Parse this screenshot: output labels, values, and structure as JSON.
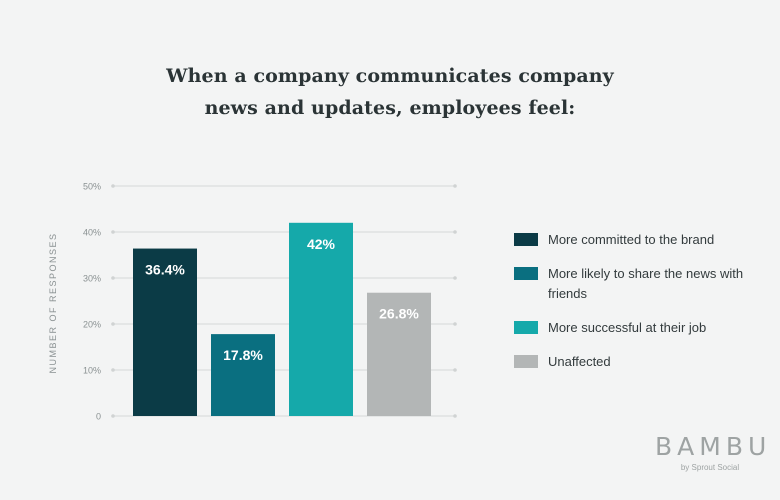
{
  "title_lines": [
    "When a company communicates company",
    "news and updates, employees feel:"
  ],
  "legend": [
    {
      "label": "More committed to the brand",
      "color": "#0b3b46"
    },
    {
      "label": "More likely to share the news with friends",
      "color": "#0a6f80"
    },
    {
      "label": "More successful at their job",
      "color": "#15a9aa"
    },
    {
      "label": "Unaffected",
      "color": "#b3b6b6"
    }
  ],
  "logo": {
    "name": "BAMBU",
    "tagline": "by Sprout Social"
  },
  "chart_data": {
    "type": "bar",
    "title": "When a company communicates company news and updates, employees feel:",
    "ylabel": "NUMBER OF RESPONSES",
    "xlabel": "",
    "ylim": [
      0,
      50
    ],
    "yticks": [
      "0",
      "10%",
      "20%",
      "30%",
      "40%",
      "50%"
    ],
    "categories": [
      "More committed to the brand",
      "More likely to share the news with friends",
      "More successful at their job",
      "Unaffected"
    ],
    "values": [
      36.4,
      17.8,
      42,
      26.8
    ],
    "value_labels": [
      "36.4%",
      "17.8%",
      "42%",
      "26.8%"
    ],
    "colors": [
      "#0b3b46",
      "#0a6f80",
      "#15a9aa",
      "#b3b6b6"
    ],
    "grid": true,
    "legend_position": "right"
  }
}
